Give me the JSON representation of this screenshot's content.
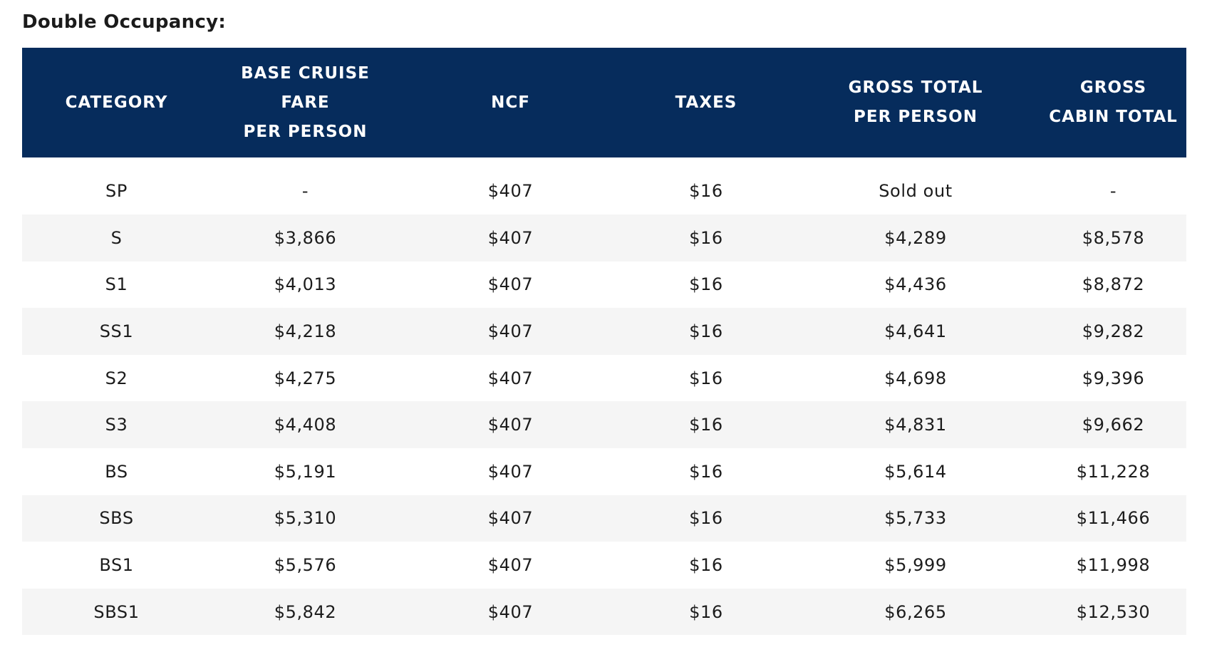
{
  "section": {
    "title": "Double Occupancy:"
  },
  "table": {
    "headers": [
      [
        "CATEGORY"
      ],
      [
        "BASE CRUISE",
        "FARE",
        "PER PERSON"
      ],
      [
        "NCF"
      ],
      [
        "TAXES"
      ],
      [
        "GROSS TOTAL",
        "PER PERSON"
      ],
      [
        "GROSS",
        "CABIN TOTAL"
      ]
    ],
    "rows": [
      [
        "SP",
        "-",
        "$407",
        "$16",
        "Sold out",
        "-"
      ],
      [
        "S",
        "$3,866",
        "$407",
        "$16",
        "$4,289",
        "$8,578"
      ],
      [
        "S1",
        "$4,013",
        "$407",
        "$16",
        "$4,436",
        "$8,872"
      ],
      [
        "SS1",
        "$4,218",
        "$407",
        "$16",
        "$4,641",
        "$9,282"
      ],
      [
        "S2",
        "$4,275",
        "$407",
        "$16",
        "$4,698",
        "$9,396"
      ],
      [
        "S3",
        "$4,408",
        "$407",
        "$16",
        "$4,831",
        "$9,662"
      ],
      [
        "BS",
        "$5,191",
        "$407",
        "$16",
        "$5,614",
        "$11,228"
      ],
      [
        "SBS",
        "$5,310",
        "$407",
        "$16",
        "$5,733",
        "$11,466"
      ],
      [
        "BS1",
        "$5,576",
        "$407",
        "$16",
        "$5,999",
        "$11,998"
      ],
      [
        "SBS1",
        "$5,842",
        "$407",
        "$16",
        "$6,265",
        "$12,530"
      ]
    ]
  },
  "colors": {
    "header_background": "#062c5c",
    "header_text": "#ffffff",
    "stripe_background": "#f5f5f5"
  }
}
